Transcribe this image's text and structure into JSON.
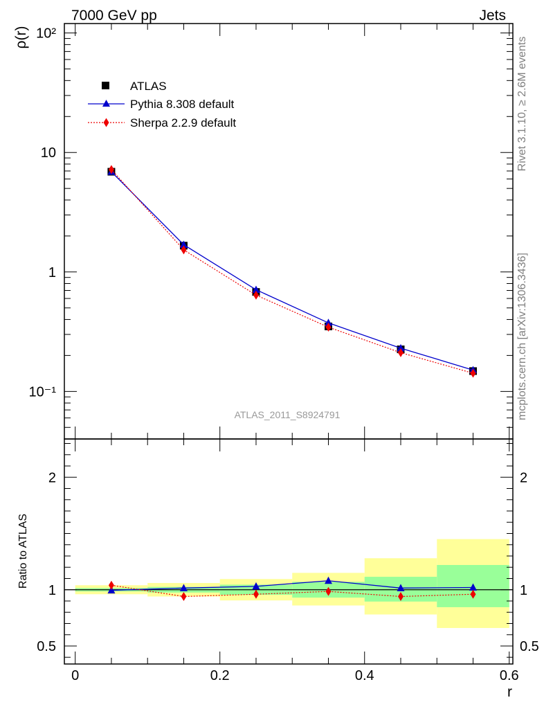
{
  "header": {
    "left": "7000 GeV pp",
    "right": "Jets"
  },
  "side_labels": {
    "top": "Rivet 3.1.10, ≥ 2.6M events",
    "bottom": "mcplots.cern.ch [arXiv:1306.3436]"
  },
  "watermark": "ATLAS_2011_S8924791",
  "chart_data": [
    {
      "type": "scatter",
      "ylabel": "ρ(r)",
      "xlabel": "",
      "yscale": "log",
      "ylim": [
        0.04,
        120
      ],
      "xlim": [
        -0.015,
        0.605
      ],
      "y_tick_labels": [
        "10⁻¹",
        "1",
        "10",
        "10²"
      ],
      "legend_placement": "top-left",
      "x": [
        0.05,
        0.15,
        0.25,
        0.35,
        0.45,
        0.55
      ],
      "series": [
        {
          "name": "ATLAS",
          "marker": "square",
          "color": "#000000",
          "values": [
            6.9,
            1.66,
            0.68,
            0.35,
            0.225,
            0.148
          ]
        },
        {
          "name": "Pythia 8.308 default",
          "marker": "triangle",
          "line": "solid",
          "color": "#0000cc",
          "values": [
            6.9,
            1.69,
            0.71,
            0.375,
            0.23,
            0.151
          ]
        },
        {
          "name": "Sherpa 2.2.9 default",
          "marker": "diamond",
          "line": "dotted",
          "color": "#ee0000",
          "values": [
            7.2,
            1.53,
            0.64,
            0.345,
            0.211,
            0.142
          ]
        }
      ]
    },
    {
      "type": "line",
      "ylabel": "Ratio to ATLAS",
      "xlabel": "r",
      "ylim": [
        0.34,
        2.34
      ],
      "xlim": [
        -0.015,
        0.605
      ],
      "x_tick_labels": [
        "0",
        "0.2",
        "0.4",
        "0.6"
      ],
      "y_tick_labels": [
        "0.5",
        "1",
        "2"
      ],
      "bins": [
        [
          0.0,
          0.1
        ],
        [
          0.1,
          0.2
        ],
        [
          0.2,
          0.3
        ],
        [
          0.3,
          0.4
        ],
        [
          0.4,
          0.5
        ],
        [
          0.5,
          0.6
        ]
      ],
      "band_green": [
        [
          0.985,
          1.015
        ],
        [
          0.975,
          1.025
        ],
        [
          0.955,
          1.045
        ],
        [
          0.93,
          1.07
        ],
        [
          0.895,
          1.115
        ],
        [
          0.845,
          1.22
        ]
      ],
      "band_yellow": [
        [
          0.96,
          1.04
        ],
        [
          0.94,
          1.06
        ],
        [
          0.905,
          1.095
        ],
        [
          0.86,
          1.15
        ],
        [
          0.78,
          1.28
        ],
        [
          0.66,
          1.45
        ]
      ],
      "band_colors": {
        "green": "#99ff99",
        "yellow": "#ffff99"
      },
      "x": [
        0.05,
        0.15,
        0.25,
        0.35,
        0.45,
        0.55
      ],
      "series": [
        {
          "name": "Pythia 8.308 default",
          "marker": "triangle",
          "line": "solid",
          "color": "#0000cc",
          "values": [
            0.995,
            1.015,
            1.03,
            1.08,
            1.015,
            1.02
          ]
        },
        {
          "name": "Sherpa 2.2.9 default",
          "marker": "diamond",
          "line": "dotted",
          "color": "#ee0000",
          "values": [
            1.04,
            0.94,
            0.96,
            0.985,
            0.94,
            0.96
          ]
        }
      ]
    }
  ]
}
